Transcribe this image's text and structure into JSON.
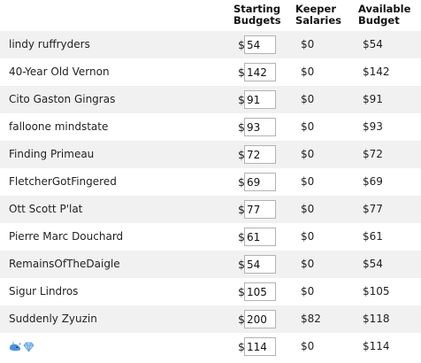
{
  "columns": {
    "starting": [
      "Starting",
      "Budgets"
    ],
    "keeper": [
      "Keeper",
      "Salaries"
    ],
    "available": [
      "Available",
      "Budget"
    ]
  },
  "currency_symbol": "$",
  "teams": [
    {
      "name": "lindy ruffryders",
      "starting": "54",
      "keeper": "$0",
      "available": "$54"
    },
    {
      "name": "40-Year Old Vernon",
      "starting": "142",
      "keeper": "$0",
      "available": "$142"
    },
    {
      "name": "Cito Gaston Gingras",
      "starting": "91",
      "keeper": "$0",
      "available": "$91"
    },
    {
      "name": "falloone mindstate",
      "starting": "93",
      "keeper": "$0",
      "available": "$93"
    },
    {
      "name": "Finding Primeau",
      "starting": "72",
      "keeper": "$0",
      "available": "$72"
    },
    {
      "name": "FletcherGotFingered",
      "starting": "69",
      "keeper": "$0",
      "available": "$69"
    },
    {
      "name": "Ott Scott P'lat",
      "starting": "77",
      "keeper": "$0",
      "available": "$77"
    },
    {
      "name": "Pierre Marc Douchard",
      "starting": "61",
      "keeper": "$0",
      "available": "$61"
    },
    {
      "name": "RemainsOfTheDaigle",
      "starting": "54",
      "keeper": "$0",
      "available": "$54"
    },
    {
      "name": "Sigur Lindros",
      "starting": "105",
      "keeper": "$0",
      "available": "$105"
    },
    {
      "name": "Suddenly Zyuzin",
      "starting": "200",
      "keeper": "$82",
      "available": "$118"
    },
    {
      "name": "",
      "icons": [
        "whale-icon",
        "diamond-icon"
      ],
      "starting": "114",
      "keeper": "$0",
      "available": "$114"
    }
  ]
}
